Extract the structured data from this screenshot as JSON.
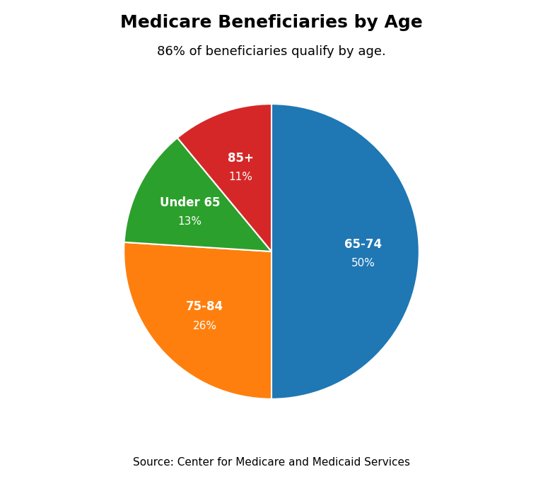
{
  "chart_data": {
    "type": "pie",
    "title": "Medicare Beneficiaries by Age",
    "subtitle": "86% of beneficiaries qualify by age.",
    "annotations": [
      "Source: Center for Medicare and Medicaid Services"
    ],
    "categories": [
      "65-74",
      "75-84",
      "Under 65",
      "85+"
    ],
    "values": [
      50,
      26,
      13,
      11
    ],
    "value_labels": [
      "50%",
      "26%",
      "13%",
      "11%"
    ]
  }
}
